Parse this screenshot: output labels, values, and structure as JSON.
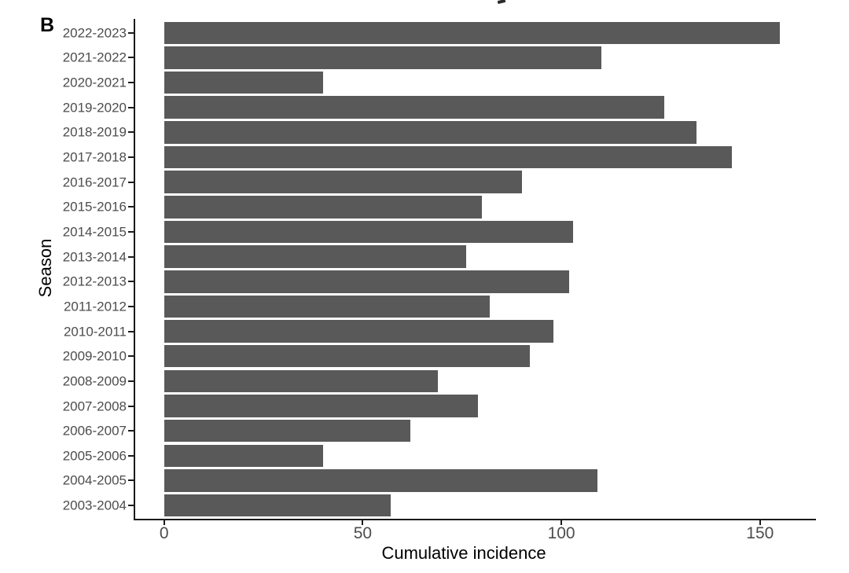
{
  "panel_label": "B",
  "chart_data": {
    "type": "bar",
    "orientation": "horizontal",
    "title": "",
    "xlabel": "Cumulative incidence",
    "ylabel": "Season",
    "categories": [
      "2022-2023",
      "2021-2022",
      "2020-2021",
      "2019-2020",
      "2018-2019",
      "2017-2018",
      "2016-2017",
      "2015-2016",
      "2014-2015",
      "2013-2014",
      "2012-2013",
      "2011-2012",
      "2010-2011",
      "2009-2010",
      "2008-2009",
      "2007-2008",
      "2006-2007",
      "2005-2006",
      "2004-2005",
      "2003-2004"
    ],
    "values": [
      155,
      110,
      40,
      126,
      134,
      143,
      90,
      80,
      103,
      76,
      102,
      82,
      98,
      92,
      69,
      79,
      62,
      40,
      109,
      57
    ],
    "x_ticks": [
      0,
      50,
      100,
      150
    ],
    "xlim": [
      0,
      163
    ],
    "grid": "off",
    "legend": "none",
    "bar_color": "#595959",
    "axis_text_color": "#4d4d4d",
    "axis_title_color": "#000000",
    "axis_line_color": "#1a1a1a",
    "background_color": "#ffffff"
  }
}
